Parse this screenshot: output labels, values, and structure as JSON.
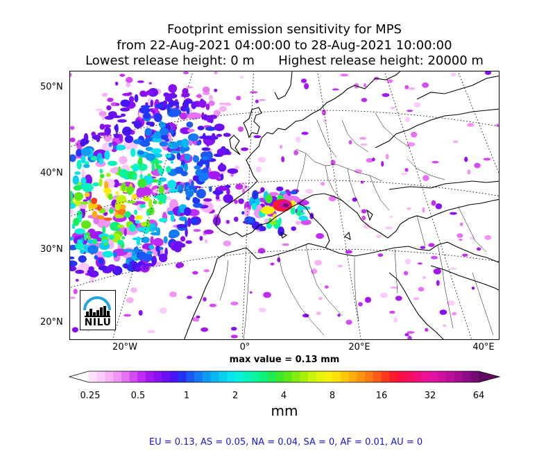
{
  "title": {
    "line1": "Footprint emission sensitivity for MPS",
    "line2": "from 22-Aug-2021 04:00:00 to 28-Aug-2021 10:00:00",
    "line3": "Lowest release height: 0 m      Highest release height: 20000 m"
  },
  "map": {
    "lat_labels": [
      "50°N",
      "40°N",
      "30°N",
      "20°N"
    ],
    "lon_labels": [
      "20°W",
      "0°",
      "20°E",
      "40°E"
    ],
    "max_value": "max value = 0.13 mm",
    "logo_text": "NILU",
    "coast_color": "#000000"
  },
  "colorbar": {
    "unit": "mm",
    "ticks": [
      "0.25",
      "0.5",
      "1",
      "2",
      "4",
      "8",
      "16",
      "32",
      "64"
    ],
    "colors": [
      "#ffffff",
      "#fde2fd",
      "#fbcbfb",
      "#f7b2f7",
      "#f195f5",
      "#e673f3",
      "#d54cf0",
      "#c02cf2",
      "#a317f2",
      "#8a10f4",
      "#6b0ff5",
      "#4815f5",
      "#2434f5",
      "#1c58f5",
      "#1479f5",
      "#0e9bf3",
      "#0ab8f1",
      "#08cef0",
      "#08e3ed",
      "#08efdb",
      "#08f4be",
      "#0af59e",
      "#0ef27b",
      "#1ded55",
      "#3ae82e",
      "#5ee818",
      "#84ec10",
      "#a7f00c",
      "#c8f40a",
      "#e4f50a",
      "#f8f00a",
      "#fddf0a",
      "#fdc80a",
      "#fdb00c",
      "#fd960f",
      "#fd7a12",
      "#fd5a17",
      "#fd3a1d",
      "#fd1c2c",
      "#fb0f44",
      "#f70f5e",
      "#f30f79",
      "#ee1194",
      "#e212a2",
      "#d0109f",
      "#bb0e9a",
      "#a50d92",
      "#8e0b87",
      "#760a77",
      "#5e0863"
    ]
  },
  "region_summary": "EU = 0.13,  AS = 0.05,  NA = 0.04,  SA = 0,  AF = 0.01,  AU = 0"
}
